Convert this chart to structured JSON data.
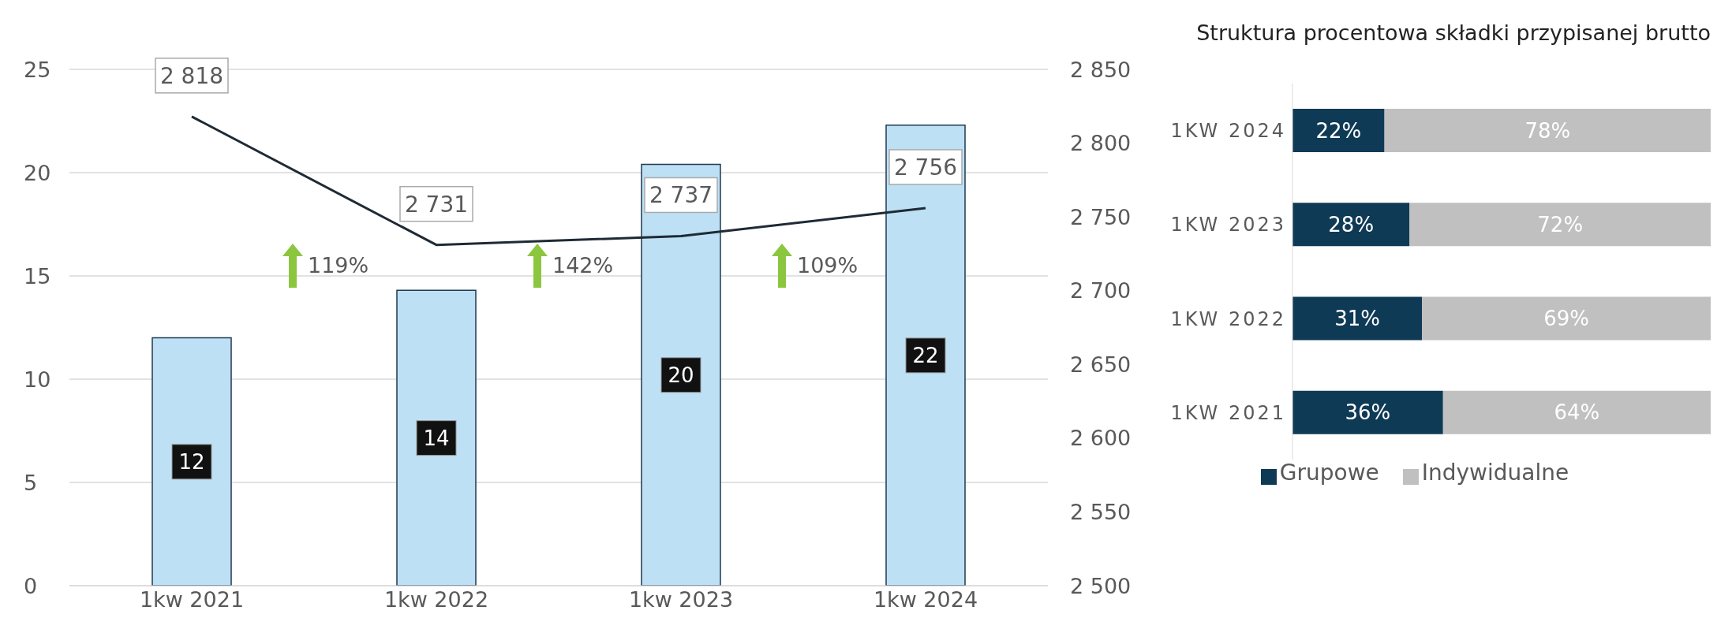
{
  "chart_data": [
    {
      "type": "bar",
      "categories": [
        "1kw 2021",
        "1kw 2022",
        "1kw 2023",
        "1kw 2024"
      ],
      "series": [
        {
          "type": "bar",
          "color": "#bde0f5",
          "values": [
            12,
            14.3,
            20.4,
            22.3
          ],
          "value_labels": [
            "12",
            "14",
            "20",
            "22"
          ]
        },
        {
          "type": "line",
          "axis": "y2",
          "color": "#1f2a36",
          "values": [
            2818,
            2731,
            2737,
            2756
          ],
          "value_labels": [
            "2 818",
            "2 731",
            "2 737",
            "2 756"
          ]
        }
      ],
      "ylim": [
        0,
        25
      ],
      "yticks": [
        0,
        5,
        10,
        15,
        20,
        25
      ],
      "y2lim": [
        2500,
        2850
      ],
      "y2ticks": [
        {
          "value": 2500,
          "label": "2 500"
        },
        {
          "value": 2550,
          "label": "2 550"
        },
        {
          "value": 2600,
          "label": "2 600"
        },
        {
          "value": 2650,
          "label": "2 650"
        },
        {
          "value": 2700,
          "label": "2 700"
        },
        {
          "value": 2750,
          "label": "2 750"
        },
        {
          "value": 2800,
          "label": "2 800"
        },
        {
          "value": 2850,
          "label": "2 850"
        }
      ],
      "grid": "y",
      "marker": "none",
      "line_style": "solid",
      "annotations": [
        "119%",
        "142%",
        "109%"
      ]
    },
    {
      "type": "bar",
      "orientation": "horizontal",
      "stacked": true,
      "title": "Struktura procentowa składki przypisanej brutto",
      "categories": [
        "1KW 2024",
        "1KW 2023",
        "1KW 2022",
        "1KW 2021"
      ],
      "series": [
        {
          "name": "Grupowe",
          "color": "#0e3a55",
          "values": [
            22,
            28,
            31,
            36
          ],
          "value_labels": [
            "22%",
            "28%",
            "31%",
            "36%"
          ]
        },
        {
          "name": "Indywidualne",
          "color": "#c0c0c0",
          "values": [
            78,
            72,
            69,
            64
          ],
          "value_labels": [
            "78%",
            "72%",
            "69%",
            "64%"
          ]
        }
      ],
      "legend": "bottom"
    }
  ]
}
